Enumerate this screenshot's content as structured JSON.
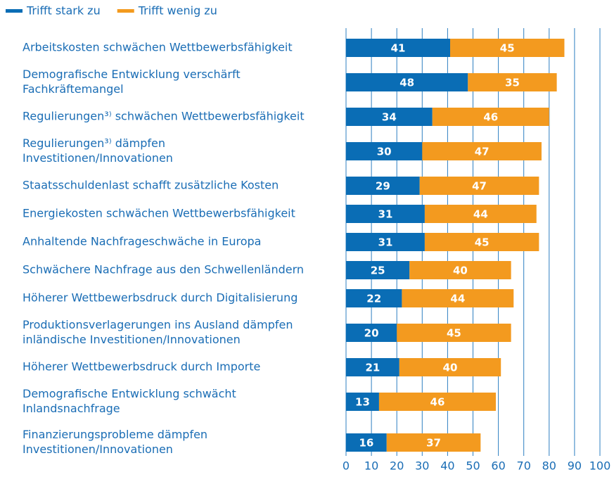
{
  "chart_data": {
    "type": "stacked-bar-horizontal",
    "categories": [
      [
        "Arbeitskosten schwächen Wettbewerbsfähigkeit"
      ],
      [
        "Demografische Entwicklung verschärft",
        "Fachkräftemangel"
      ],
      [
        "Regulierungen³⁾ schwächen Wettbewerbsfähigkeit"
      ],
      [
        "Regulierungen³⁾ dämpfen",
        "Investitionen/Innovationen"
      ],
      [
        "Staatsschuldenlast schafft zusätzliche Kosten"
      ],
      [
        "Energiekosten schwächen Wettbewerbsfähigkeit"
      ],
      [
        "Anhaltende Nachfrageschwäche in Europa"
      ],
      [
        "Schwächere Nachfrage aus den Schwellenländern"
      ],
      [
        "Höherer Wettbewerbsdruck durch Digitalisierung"
      ],
      [
        "Produktionsverlagerungen ins Ausland dämpfen",
        "inländische Investitionen/Innovationen"
      ],
      [
        "Höherer Wettbewerbsdruck durch Importe"
      ],
      [
        "Demografische Entwicklung schwächt",
        "Inlandsnachfrage"
      ],
      [
        "Finanzierungsprobleme dämpfen",
        "Investitionen/Innovationen"
      ]
    ],
    "series": [
      {
        "name": "Trifft stark zu",
        "color": "#0a6db5",
        "values": [
          41,
          48,
          34,
          30,
          29,
          31,
          31,
          25,
          22,
          20,
          21,
          13,
          16
        ]
      },
      {
        "name": "Trifft wenig zu",
        "color": "#f39a1f",
        "values": [
          45,
          35,
          46,
          47,
          47,
          44,
          45,
          40,
          44,
          45,
          40,
          46,
          37
        ]
      }
    ],
    "xlim": [
      0,
      100
    ],
    "xticks": [
      0,
      10,
      20,
      30,
      40,
      50,
      60,
      70,
      80,
      90,
      100
    ],
    "grid": true,
    "legend": "top-left"
  }
}
